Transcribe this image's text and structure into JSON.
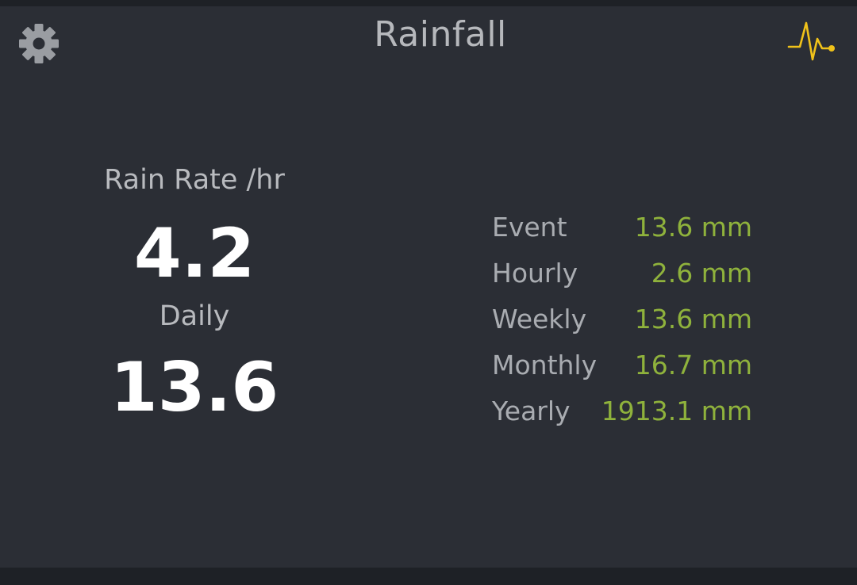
{
  "header": {
    "title": "Rainfall",
    "settings_icon": "gear-icon",
    "activity_icon": "pulse-icon"
  },
  "colors": {
    "background": "#2b2e35",
    "value_accent": "#8fb23c",
    "pulse_icon": "#f0c21a",
    "gear_icon": "#9a9da2"
  },
  "current": {
    "rate_label": "Rain Rate /hr",
    "rate_value": "4.2",
    "daily_label": "Daily",
    "daily_value": "13.6"
  },
  "totals": [
    {
      "label": "Event",
      "value": "13.6 mm"
    },
    {
      "label": "Hourly",
      "value": "2.6 mm"
    },
    {
      "label": "Weekly",
      "value": "13.6 mm"
    },
    {
      "label": "Monthly",
      "value": "16.7 mm"
    },
    {
      "label": "Yearly",
      "value": "1913.1 mm"
    }
  ]
}
